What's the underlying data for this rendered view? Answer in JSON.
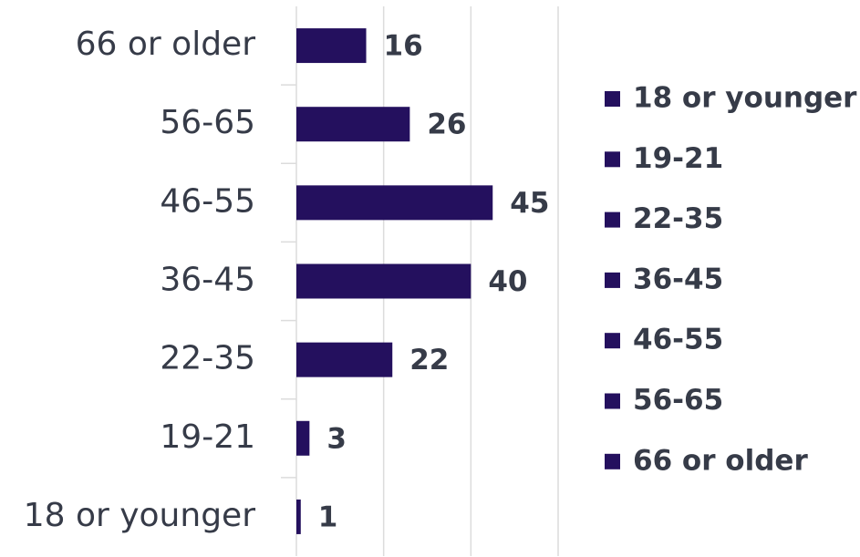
{
  "chart_data": {
    "type": "bar",
    "orientation": "horizontal",
    "categories": [
      "18 or younger",
      "19-21",
      "22-35",
      "36-45",
      "46-55",
      "56-65",
      "66 or older"
    ],
    "values": [
      1,
      3,
      22,
      40,
      45,
      26,
      16
    ],
    "color": "#24105e",
    "xlim": [
      0,
      60
    ],
    "xticks": [
      0,
      20,
      40,
      60
    ],
    "grid": true,
    "legend": "right"
  }
}
